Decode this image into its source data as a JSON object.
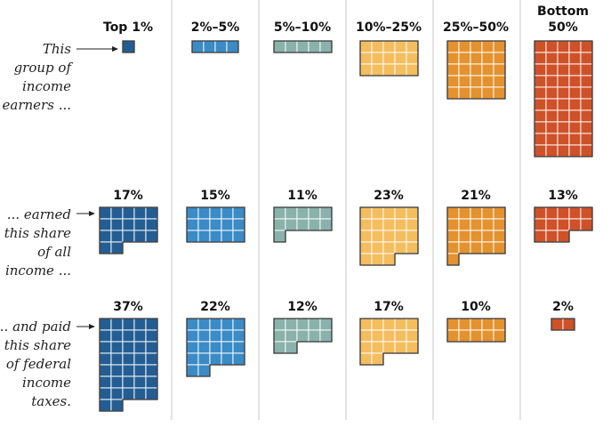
{
  "chart_data": {
    "type": "waffle",
    "unit": "each square = 1%",
    "groups": [
      {
        "label_lines": [
          "Top 1%"
        ],
        "color": "#245d93"
      },
      {
        "label_lines": [
          "2%–5%"
        ],
        "color": "#3a8bc6"
      },
      {
        "label_lines": [
          "5%–10%"
        ],
        "color": "#89b2ab"
      },
      {
        "label_lines": [
          "10%–25%"
        ],
        "color": "#f4bd5e"
      },
      {
        "label_lines": [
          "25%–50%"
        ],
        "color": "#e4922f"
      },
      {
        "label_lines": [
          "Bottom",
          "50%"
        ],
        "color": "#cf5128"
      }
    ],
    "rows": [
      {
        "name": "population",
        "label_lines": [
          "This",
          "group of",
          "income",
          "earners ..."
        ],
        "values": [
          1,
          4,
          5,
          15,
          25,
          50
        ],
        "value_labels": [
          "",
          "",
          "",
          "",
          "",
          ""
        ]
      },
      {
        "name": "income",
        "label_lines": [
          "... earned",
          "this share",
          "of all",
          "income ..."
        ],
        "values": [
          17,
          15,
          11,
          23,
          21,
          13
        ],
        "value_labels": [
          "17%",
          "15%",
          "11%",
          "23%",
          "21%",
          "13%"
        ]
      },
      {
        "name": "taxes",
        "label_lines": [
          "... and paid",
          "this share",
          "of federal",
          "income",
          "taxes."
        ],
        "values": [
          37,
          22,
          12,
          17,
          10,
          2
        ],
        "value_labels": [
          "37%",
          "22%",
          "12%",
          "17%",
          "10%",
          "2%"
        ]
      }
    ]
  }
}
